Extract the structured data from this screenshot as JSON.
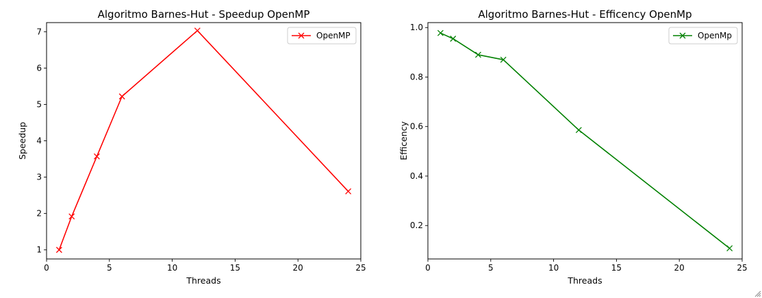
{
  "chart_data": [
    {
      "type": "line",
      "title": "Algoritmo Barnes-Hut - Speedup OpenMP",
      "xlabel": "Threads",
      "ylabel": "Speedup",
      "xlim": [
        0,
        25
      ],
      "ylim": [
        0.75,
        7.25
      ],
      "xticks": [
        0,
        5,
        10,
        15,
        20,
        25
      ],
      "yticks": [
        1,
        2,
        3,
        4,
        5,
        6,
        7
      ],
      "x": [
        1,
        2,
        4,
        6,
        12,
        24
      ],
      "series": [
        {
          "name": "OpenMP",
          "color": "#ff0000",
          "marker": "x",
          "values": [
            1.0,
            1.92,
            3.57,
            5.22,
            7.03,
            2.61
          ]
        }
      ],
      "legend": "top-right",
      "grid": false
    },
    {
      "type": "line",
      "title": "Algoritmo Barnes-Hut - Efficency OpenMp",
      "xlabel": "Threads",
      "ylabel": "Efficency",
      "xlim": [
        0,
        25
      ],
      "ylim": [
        0.065,
        1.02
      ],
      "xticks": [
        0,
        5,
        10,
        15,
        20,
        25
      ],
      "yticks": [
        0.2,
        0.4,
        0.6,
        0.8,
        1.0
      ],
      "x": [
        1,
        2,
        4,
        6,
        12,
        24
      ],
      "series": [
        {
          "name": "OpenMp",
          "color": "#008000",
          "marker": "x",
          "values": [
            0.978,
            0.955,
            0.89,
            0.87,
            0.586,
            0.108
          ]
        }
      ],
      "legend": "top-right",
      "grid": false
    }
  ]
}
